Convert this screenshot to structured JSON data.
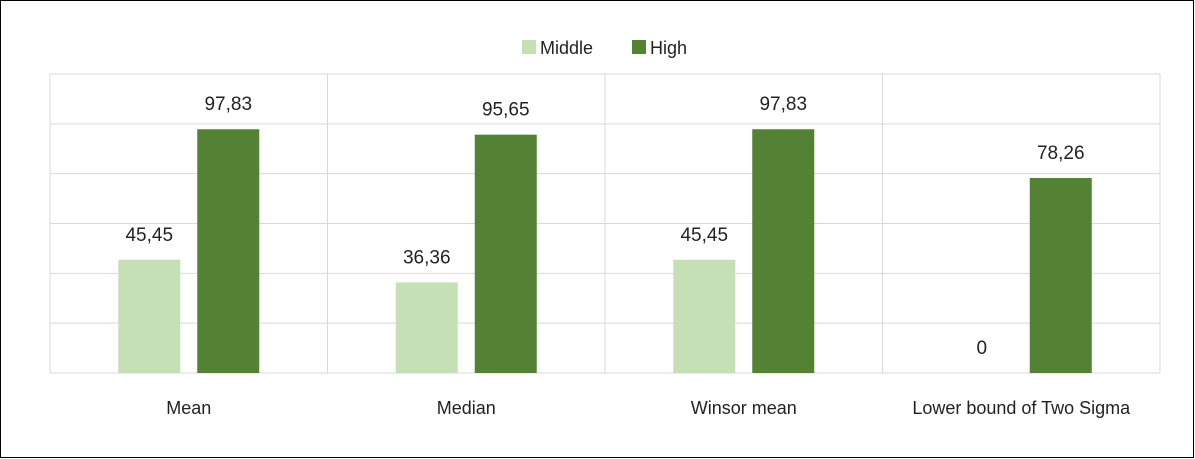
{
  "chart_data": {
    "type": "bar",
    "title": "",
    "xlabel": "",
    "ylabel": "",
    "categories": [
      "Mean",
      "Median",
      "Winsor mean",
      "Lower bound of Two Sigma"
    ],
    "series": [
      {
        "name": "Middle",
        "values": [
          45.45,
          36.36,
          45.45,
          0
        ],
        "labels": [
          "45,45",
          "36,36",
          "45,45",
          "0"
        ]
      },
      {
        "name": "High",
        "values": [
          97.83,
          95.65,
          97.83,
          78.26
        ],
        "labels": [
          "97,83",
          "95,65",
          "97,83",
          "78,26"
        ]
      }
    ],
    "ylim": [
      0,
      120
    ],
    "y_gridlines": [
      0,
      20,
      40,
      60,
      80,
      100,
      120
    ],
    "grid": true,
    "y_axis_labels_shown": false,
    "legend_position": "top-center",
    "colors": {
      "Middle": "#c5e0b4",
      "High": "#548235",
      "grid": "#d9d9d9",
      "frame": "#000000"
    }
  }
}
